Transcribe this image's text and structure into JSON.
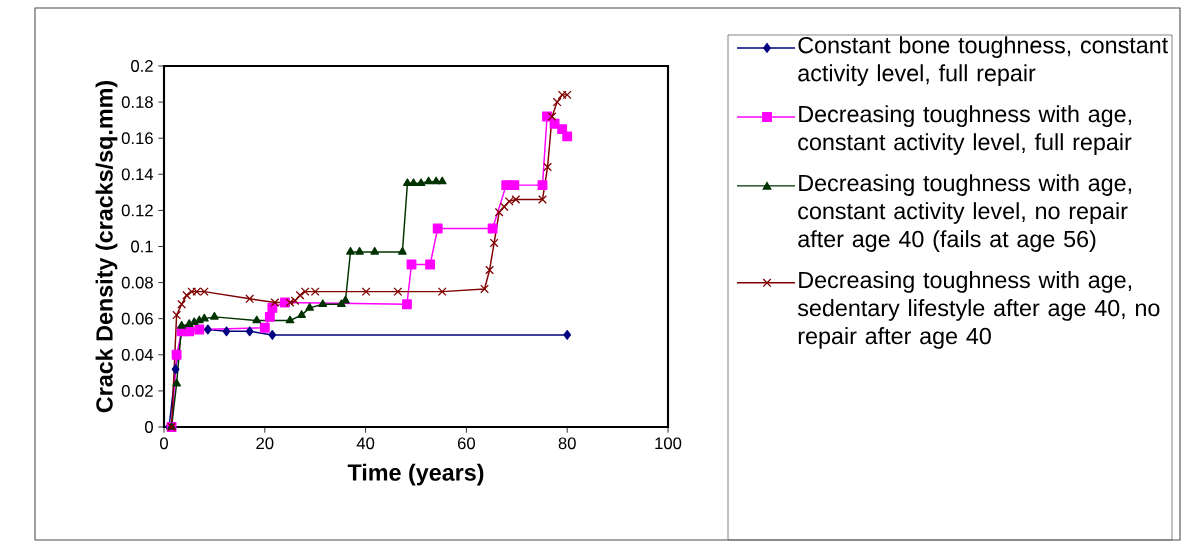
{
  "chart_data": {
    "type": "line",
    "xlabel": "Time (years)",
    "ylabel": "Crack Density (cracks/sq.mm)",
    "xlim": [
      0,
      100
    ],
    "xticks": [
      0,
      20,
      40,
      60,
      80,
      100
    ],
    "ylim": [
      0,
      0.2
    ],
    "yticks": [
      0,
      0.02,
      0.04,
      0.06,
      0.08,
      0.1,
      0.12,
      0.14,
      0.16,
      0.18,
      0.2
    ],
    "grid": false,
    "legend": "right",
    "line_style": "solid",
    "series": [
      {
        "name": "Constant bone toughness, constant activity level, full repair",
        "color": "#000080",
        "marker": "diamond",
        "x": [
          1,
          2.3,
          3.5,
          5,
          8.7,
          12.4,
          17,
          21.5,
          80
        ],
        "values": [
          0,
          0.032,
          0.053,
          0.054,
          0.054,
          0.053,
          0.053,
          0.051,
          0.051
        ]
      },
      {
        "name": "Decreasing toughness with age, constant activity level, full repair",
        "color": "#ff00ff",
        "marker": "square",
        "x": [
          1.5,
          2.5,
          3.5,
          5,
          7,
          20,
          21,
          21.5,
          24,
          48.2,
          49.1,
          52.8,
          54.3,
          65.2,
          67.9,
          69.5,
          75.1,
          76,
          77.5,
          79,
          80
        ],
        "values": [
          0,
          0.04,
          0.053,
          0.053,
          0.054,
          0.055,
          0.061,
          0.066,
          0.069,
          0.068,
          0.09,
          0.09,
          0.11,
          0.11,
          0.134,
          0.134,
          0.134,
          0.172,
          0.168,
          0.165,
          0.161
        ]
      },
      {
        "name": "Decreasing toughness with age, constant activity level, no repair after age 40 (fails at age 56)",
        "color": "#003300",
        "marker": "triangle",
        "x": [
          1.5,
          2.5,
          3.5,
          5,
          6,
          7,
          8,
          10,
          18.4,
          25,
          27.3,
          28.9,
          31.5,
          35.2,
          36,
          37,
          38.8,
          41.8,
          47.3,
          48.3,
          49.5,
          51,
          52.5,
          54,
          55.2
        ],
        "values": [
          0,
          0.024,
          0.056,
          0.057,
          0.058,
          0.059,
          0.06,
          0.061,
          0.059,
          0.059,
          0.062,
          0.066,
          0.068,
          0.068,
          0.07,
          0.097,
          0.097,
          0.097,
          0.097,
          0.135,
          0.135,
          0.135,
          0.136,
          0.136,
          0.136
        ]
      },
      {
        "name": "Decreasing toughness with age, sedentary lifestyle after age 40, no repair after age 40",
        "color": "#800000",
        "marker": "cross",
        "x": [
          1.5,
          2.5,
          3.5,
          4.5,
          5.5,
          6.5,
          8,
          17,
          22,
          25,
          26,
          27,
          28,
          30,
          40.1,
          46.4,
          55.2,
          63.6,
          64.6,
          65.5,
          66.5,
          67.5,
          68.5,
          69.8,
          75.1,
          76.1,
          77,
          78,
          79,
          80
        ],
        "values": [
          0,
          0.062,
          0.068,
          0.073,
          0.075,
          0.075,
          0.075,
          0.071,
          0.069,
          0.069,
          0.07,
          0.073,
          0.075,
          0.075,
          0.075,
          0.075,
          0.075,
          0.0765,
          0.087,
          0.102,
          0.119,
          0.122,
          0.125,
          0.126,
          0.126,
          0.144,
          0.172,
          0.18,
          0.184,
          0.184
        ]
      }
    ]
  }
}
